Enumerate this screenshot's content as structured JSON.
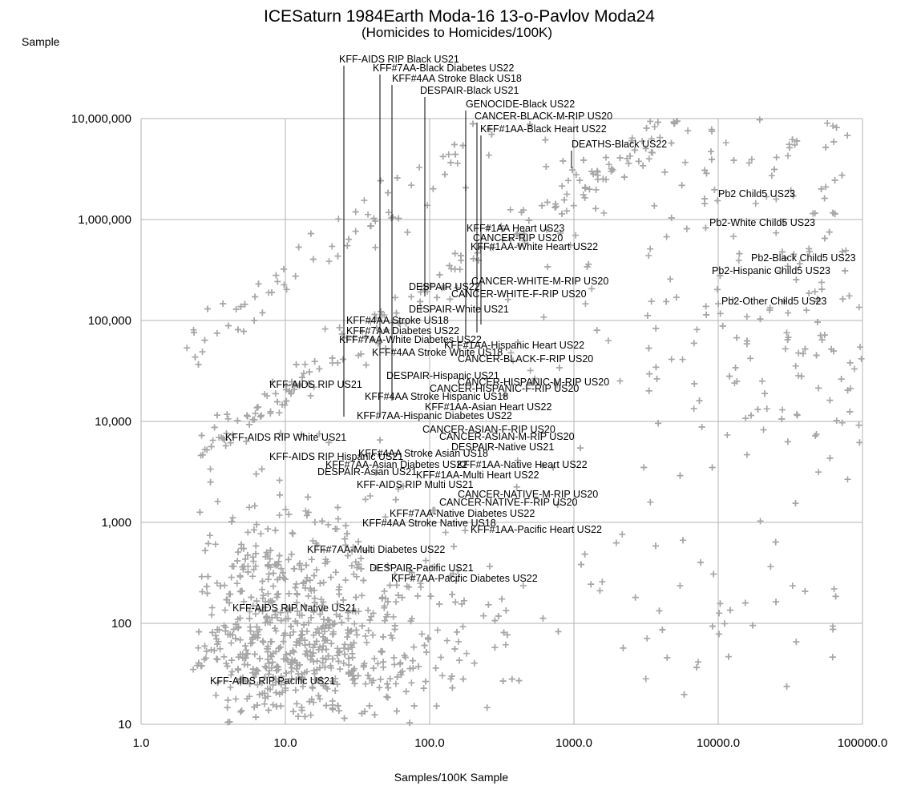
{
  "chart_data": {
    "type": "scatter",
    "title": "ICESaturn 1984Earth Moda-16 13-o-Pavlov Moda24",
    "subtitle": "(Homicides to Homicides/100K)",
    "xlabel": "Samples/100K Sample",
    "ylabel": "Sample",
    "x_scale": "log",
    "y_scale": "log",
    "xlim": [
      1,
      100000
    ],
    "ylim": [
      10,
      10000000
    ],
    "grid": true,
    "x_ticks": [
      1,
      10,
      100,
      1000,
      10000,
      100000
    ],
    "x_tick_labels": [
      "1.0",
      "10.0",
      "100.0",
      "1000.0",
      "10000.0",
      "100000.0"
    ],
    "y_ticks": [
      10,
      100,
      1000,
      10000,
      100000,
      1000000,
      10000000
    ],
    "y_tick_labels": [
      "10",
      "100",
      "1,000",
      "10,000",
      "100,000",
      "1,000,000",
      "10,000,000"
    ],
    "marker": "plus",
    "marker_color": "#a6a6a6",
    "annotations": [
      {
        "text": "KFF-AIDS RIP Black US21",
        "x": 25.1,
        "y": 11000
      },
      {
        "text": "KFF#7AA-Black Diabetes US22",
        "x": 45.2,
        "y": 11000
      },
      {
        "text": "KFF#4AA Stroke Black US18",
        "x": 55.0,
        "y": 12000
      },
      {
        "text": "DESPAIR-Black US21",
        "x": 92.0,
        "y": 180000
      },
      {
        "text": "GENOCIDE-Black US22",
        "x": 182.0,
        "y": 90000
      },
      {
        "text": "CANCER-BLACK-M-RIP US20",
        "x": 226.0,
        "y": 85000
      },
      {
        "text": "KFF#1AA-Black Heart US22",
        "x": 238.0,
        "y": 90000
      },
      {
        "text": "DEATHS-Black US22",
        "x": 1000.0,
        "y": 4700000
      },
      {
        "text": "Pb2 Child5 US23",
        "x": 0,
        "y": 0
      },
      {
        "text": "Pb2-White Child5 US23",
        "x": 0,
        "y": 0
      },
      {
        "text": "Pb2-Black Child5 US23",
        "x": 0,
        "y": 0
      },
      {
        "text": "Pb2-Hispanic Child5 US23",
        "x": 0,
        "y": 0
      },
      {
        "text": "Pb2-Other Child5 US23",
        "x": 0,
        "y": 0
      },
      {
        "text": "KFF#1AA Heart US23",
        "x": 0,
        "y": 0
      },
      {
        "text": "CANCER-RIP US20",
        "x": 0,
        "y": 0
      },
      {
        "text": "KFF#1AA-White Heart US22",
        "x": 0,
        "y": 0
      },
      {
        "text": "CANCER-WHITE-M-RIP US20",
        "x": 0,
        "y": 0
      },
      {
        "text": "DESPAIR US22",
        "x": 0,
        "y": 0
      },
      {
        "text": "CANCER-WHITE-F-RIP US20",
        "x": 0,
        "y": 0
      },
      {
        "text": "DESPAIR-White US21",
        "x": 0,
        "y": 0
      },
      {
        "text": "KFF#4AA Stroke US18",
        "x": 0,
        "y": 0
      },
      {
        "text": "KFF#7AA Diabetes US22",
        "x": 0,
        "y": 0
      },
      {
        "text": "KFF#7AA-White Diabetes US22",
        "x": 0,
        "y": 0
      },
      {
        "text": "KFF#1AA-Hispanic Heart US22",
        "x": 0,
        "y": 0
      },
      {
        "text": "KFF#4AA Stroke White US18",
        "x": 0,
        "y": 0
      },
      {
        "text": "CANCER-BLACK-F-RIP US20",
        "x": 0,
        "y": 0
      },
      {
        "text": "DESPAIR-Hispanic US21",
        "x": 0,
        "y": 0
      },
      {
        "text": "KFF-AIDS RIP US21",
        "x": 0,
        "y": 0
      },
      {
        "text": "CANCER-HISPANIC-M-RIP US20",
        "x": 0,
        "y": 0
      },
      {
        "text": "CANCER-HISPANIC-F-RIP US20",
        "x": 0,
        "y": 0
      },
      {
        "text": "KFF#4AA Stroke Hispanic US18",
        "x": 0,
        "y": 0
      },
      {
        "text": "KFF#1AA-Asian Heart US22",
        "x": 0,
        "y": 0
      },
      {
        "text": "KFF#7AA-Hispanic Diabetes US22",
        "x": 0,
        "y": 0
      },
      {
        "text": "CANCER-ASIAN-F-RIP US20",
        "x": 0,
        "y": 0
      },
      {
        "text": "KFF-AIDS RIP White US21",
        "x": 0,
        "y": 0
      },
      {
        "text": "CANCER-ASIAN-M-RIP US20",
        "x": 0,
        "y": 0
      },
      {
        "text": "DESPAIR-Native US21",
        "x": 0,
        "y": 0
      },
      {
        "text": "KFF#4AA Stroke Asian US18",
        "x": 0,
        "y": 0
      },
      {
        "text": "KFF-AIDS RIP Hispanic US21",
        "x": 0,
        "y": 0
      },
      {
        "text": "KFF#7AA-Asian Diabetes US22",
        "x": 0,
        "y": 0
      },
      {
        "text": "KFF#1AA-Native Heart US22",
        "x": 0,
        "y": 0
      },
      {
        "text": "DESPAIR-Asian US21",
        "x": 0,
        "y": 0
      },
      {
        "text": "KFF#1AA-Multi Heart US22",
        "x": 0,
        "y": 0
      },
      {
        "text": "KFF-AIDS RIP Multi US21",
        "x": 0,
        "y": 0
      },
      {
        "text": "CANCER-NATIVE-M-RIP US20",
        "x": 0,
        "y": 0
      },
      {
        "text": "CANCER-NATIVE-F-RIP US20",
        "x": 0,
        "y": 0
      },
      {
        "text": "KFF#7AA-Native Diabetes US22",
        "x": 0,
        "y": 0
      },
      {
        "text": "KFF#4AA Stroke Native US18",
        "x": 0,
        "y": 0
      },
      {
        "text": "KFF#1AA-Pacific Heart US22",
        "x": 0,
        "y": 0
      },
      {
        "text": "KFF#7AA-Multi Diabetes US22",
        "x": 0,
        "y": 0
      },
      {
        "text": "DESPAIR-Pacific US21",
        "x": 0,
        "y": 0
      },
      {
        "text": "KFF#7AA-Pacific Diabetes US22",
        "x": 0,
        "y": 0
      },
      {
        "text": "KFF-AIDS RIP Native US21",
        "x": 0,
        "y": 0
      },
      {
        "text": "KFF-AIDS RIP Pacific US21",
        "x": 0,
        "y": 0
      }
    ],
    "points_note_count": 2200,
    "points_seed": 19840
  }
}
